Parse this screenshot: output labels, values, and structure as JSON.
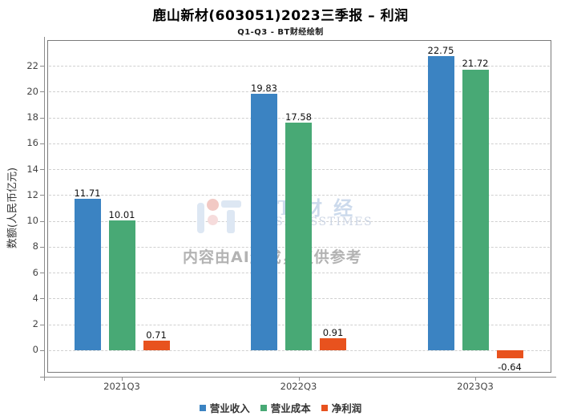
{
  "header": {
    "title": "鹿山新材(603051)2023三季报 – 利润",
    "subtitle": "Q1-Q3 - BT财经绘制"
  },
  "watermark": {
    "brand_cn": "BT财经",
    "brand_en": "BUSINESSTIMES",
    "disclaimer": "内容由AI生成，仅供参考",
    "brand_color": "#ccdaec",
    "logo_blue": "#dde7f3",
    "logo_pink_top": "#f2c9c4",
    "logo_pink_bottom": "#f6dcdc"
  },
  "chart_data": {
    "type": "bar",
    "title": "鹿山新材(603051)2023三季报 – 利润",
    "subtitle": "Q1-Q3 - BT财经绘制",
    "categories": [
      "2021Q3",
      "2022Q3",
      "2023Q3"
    ],
    "series": [
      {
        "name": "营业收入",
        "color": "#3b83c2",
        "values": [
          11.71,
          19.83,
          22.75
        ]
      },
      {
        "name": "营业成本",
        "color": "#48a975",
        "values": [
          10.01,
          17.58,
          21.72
        ]
      },
      {
        "name": "净利润",
        "color": "#e8521e",
        "values": [
          0.71,
          0.91,
          -0.64
        ]
      }
    ],
    "xlabel": "",
    "ylabel": "数额(人民币亿元)",
    "yticks": [
      0,
      2,
      4,
      6,
      8,
      10,
      12,
      14,
      16,
      18,
      20,
      22
    ],
    "ylim": [
      -1.75,
      24
    ],
    "grid": true,
    "grid_style": "dashed",
    "legend_position": "bottom",
    "value_labels_decimals": 2
  }
}
